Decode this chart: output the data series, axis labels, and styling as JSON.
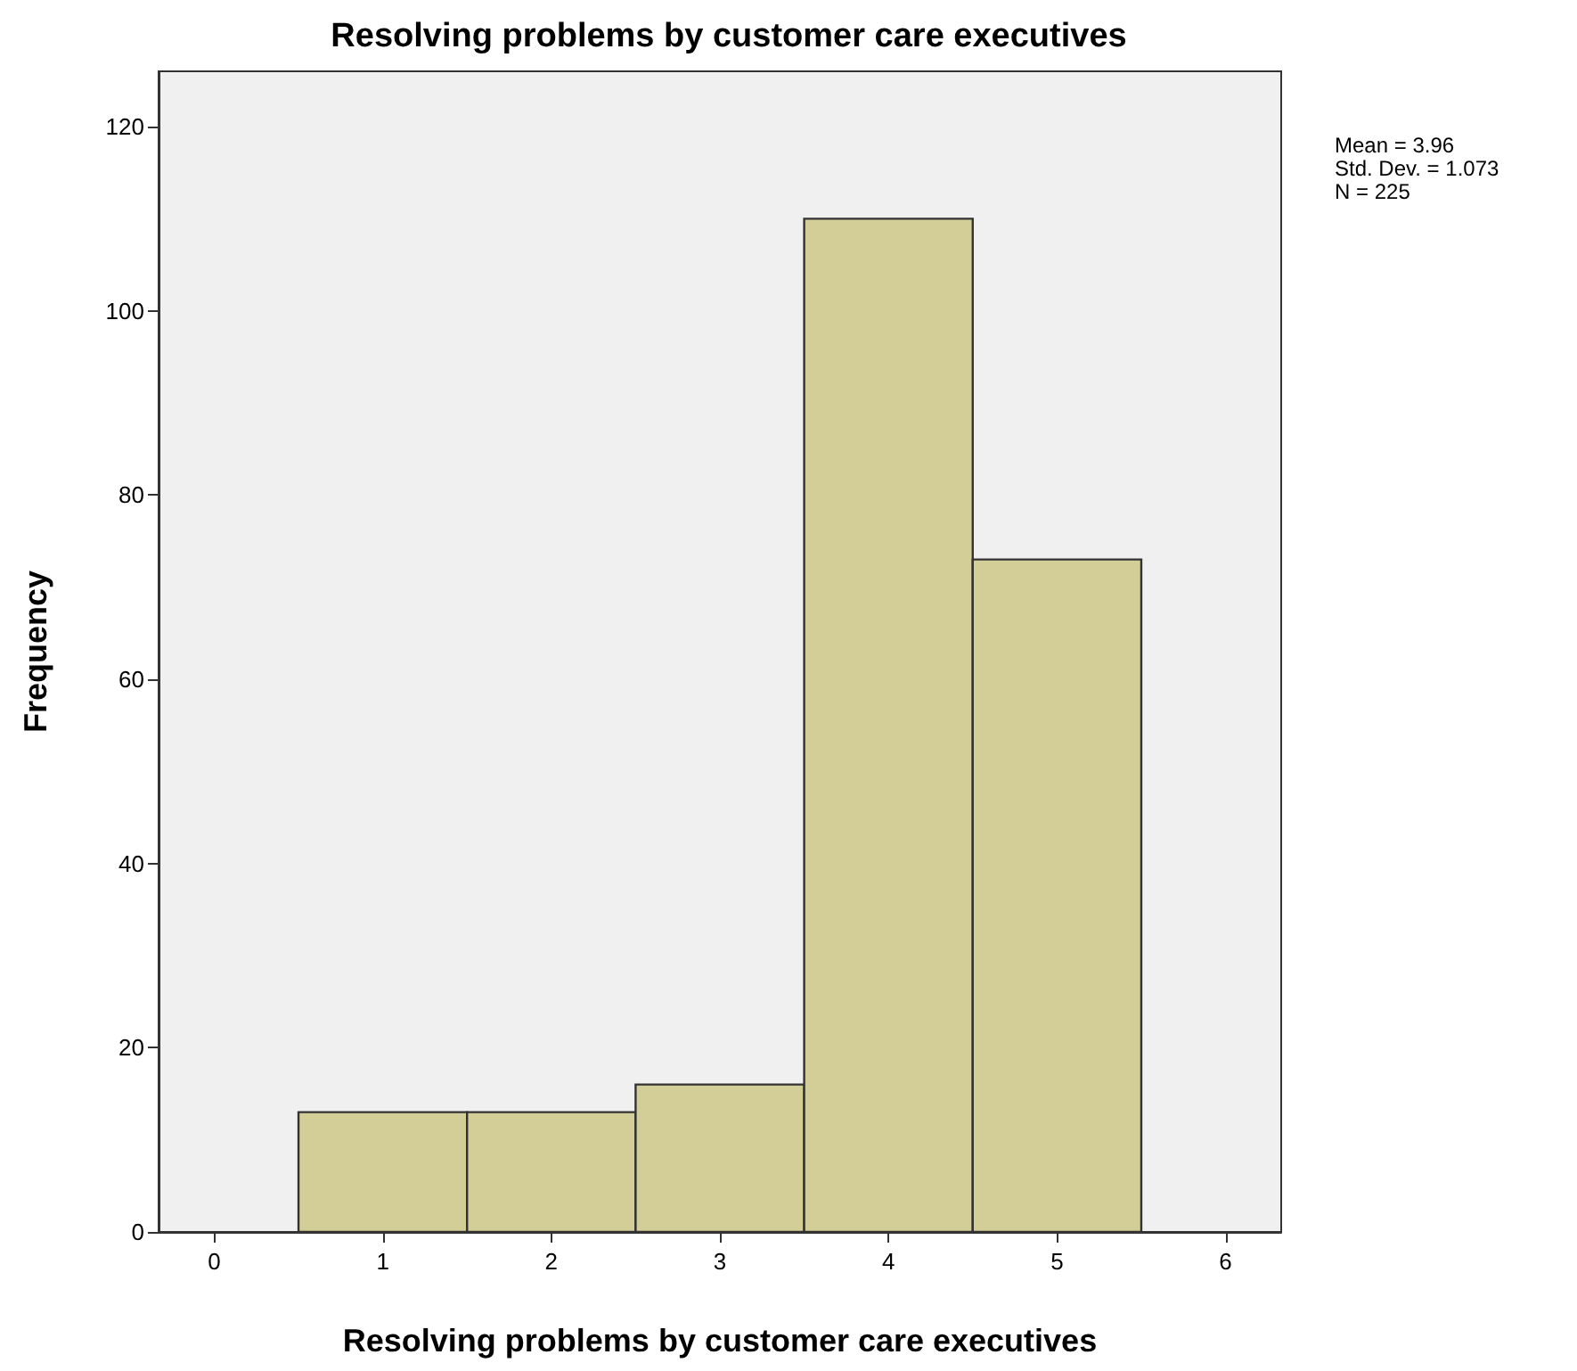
{
  "chart_data": {
    "type": "histogram",
    "title": "Resolving problems by customer care executives",
    "xlabel": "Resolving problems by customer care executives",
    "ylabel": "Frequency",
    "bins": [
      0.5,
      1.5,
      2.5,
      3.5,
      4.5,
      5.5
    ],
    "values": [
      13,
      13,
      16,
      110,
      73
    ],
    "color": "#d3ce97",
    "xlim": [
      -0.33,
      6.33
    ],
    "xticks": [
      0,
      1,
      2,
      3,
      4,
      5,
      6
    ],
    "ylim": [
      0,
      126
    ],
    "yticks": [
      0,
      20,
      40,
      60,
      80,
      100,
      120
    ],
    "grid": false,
    "annotations": [
      "Mean = 3.96",
      "Std. Dev. = 1.073",
      "N = 225"
    ]
  }
}
